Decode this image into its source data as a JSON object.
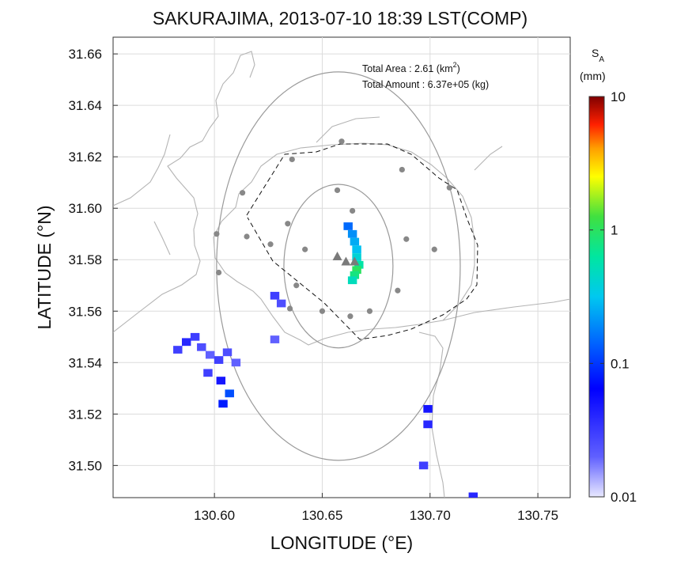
{
  "chart_data": {
    "type": "heatmap",
    "title": "SAKURAJIMA, 2013-07-10 18:39 LST(COMP)",
    "xlabel": "LONGITUDE (°E)",
    "ylabel": "LATITUDE (°N)",
    "xlim": [
      130.553,
      130.765
    ],
    "ylim": [
      31.4875,
      31.6665
    ],
    "xticks": [
      130.6,
      130.65,
      130.7,
      130.75
    ],
    "xtick_labels": [
      "130.60",
      "130.65",
      "130.70",
      "130.75"
    ],
    "yticks": [
      31.5,
      31.52,
      31.54,
      31.56,
      31.58,
      31.6,
      31.62,
      31.64,
      31.66
    ],
    "ytick_labels": [
      "31.50",
      "31.52",
      "31.54",
      "31.56",
      "31.58",
      "31.60",
      "31.62",
      "31.64",
      "31.66"
    ],
    "grid": true,
    "annotations": {
      "area_label": "Total Area   : 2.61 (km",
      "area_sup": "2",
      "area_close": ")",
      "amount_label": "Total Amount : 6.37e+05 (kg)"
    },
    "colorbar": {
      "label_main": "S",
      "label_sub": "A",
      "unit": "(mm)",
      "scale": "log",
      "range": [
        0.01,
        10
      ],
      "ticks": [
        10,
        1,
        0.1,
        0.01
      ],
      "tick_labels": [
        "10",
        "1",
        "0.1",
        "0.01"
      ]
    },
    "vents": [
      {
        "lon": 130.657,
        "lat": 31.581
      },
      {
        "lon": 130.661,
        "lat": 31.579
      },
      {
        "lon": 130.665,
        "lat": 31.579
      }
    ],
    "stations": [
      {
        "lon": 130.659,
        "lat": 31.626
      },
      {
        "lon": 130.636,
        "lat": 31.619
      },
      {
        "lon": 130.687,
        "lat": 31.615
      },
      {
        "lon": 130.709,
        "lat": 31.608
      },
      {
        "lon": 130.613,
        "lat": 31.606
      },
      {
        "lon": 130.657,
        "lat": 31.607
      },
      {
        "lon": 130.664,
        "lat": 31.599
      },
      {
        "lon": 130.634,
        "lat": 31.594
      },
      {
        "lon": 130.601,
        "lat": 31.59
      },
      {
        "lon": 130.615,
        "lat": 31.589
      },
      {
        "lon": 130.689,
        "lat": 31.588
      },
      {
        "lon": 130.626,
        "lat": 31.586
      },
      {
        "lon": 130.642,
        "lat": 31.584
      },
      {
        "lon": 130.702,
        "lat": 31.584
      },
      {
        "lon": 130.602,
        "lat": 31.575
      },
      {
        "lon": 130.638,
        "lat": 31.57
      },
      {
        "lon": 130.685,
        "lat": 31.568
      },
      {
        "lon": 130.635,
        "lat": 31.561
      },
      {
        "lon": 130.65,
        "lat": 31.56
      },
      {
        "lon": 130.672,
        "lat": 31.56
      },
      {
        "lon": 130.663,
        "lat": 31.558
      }
    ],
    "center": {
      "lon": 130.6575,
      "lat": 31.5775
    },
    "cells": [
      {
        "lon": 130.662,
        "lat": 31.593,
        "v": 0.15
      },
      {
        "lon": 130.664,
        "lat": 31.59,
        "v": 0.2
      },
      {
        "lon": 130.665,
        "lat": 31.587,
        "v": 0.25
      },
      {
        "lon": 130.666,
        "lat": 31.584,
        "v": 0.3
      },
      {
        "lon": 130.666,
        "lat": 31.581,
        "v": 0.4
      },
      {
        "lon": 130.667,
        "lat": 31.578,
        "v": 0.6
      },
      {
        "lon": 130.666,
        "lat": 31.576,
        "v": 1.0
      },
      {
        "lon": 130.665,
        "lat": 31.574,
        "v": 0.8
      },
      {
        "lon": 130.664,
        "lat": 31.572,
        "v": 0.5
      },
      {
        "lon": 130.583,
        "lat": 31.545,
        "v": 0.03
      },
      {
        "lon": 130.587,
        "lat": 31.548,
        "v": 0.04
      },
      {
        "lon": 130.591,
        "lat": 31.55,
        "v": 0.03
      },
      {
        "lon": 130.594,
        "lat": 31.546,
        "v": 0.025
      },
      {
        "lon": 130.598,
        "lat": 31.543,
        "v": 0.02
      },
      {
        "lon": 130.602,
        "lat": 31.541,
        "v": 0.03
      },
      {
        "lon": 130.606,
        "lat": 31.544,
        "v": 0.025
      },
      {
        "lon": 130.61,
        "lat": 31.54,
        "v": 0.02
      },
      {
        "lon": 130.597,
        "lat": 31.536,
        "v": 0.03
      },
      {
        "lon": 130.603,
        "lat": 31.533,
        "v": 0.05
      },
      {
        "lon": 130.607,
        "lat": 31.528,
        "v": 0.12
      },
      {
        "lon": 130.604,
        "lat": 31.524,
        "v": 0.08
      },
      {
        "lon": 130.628,
        "lat": 31.566,
        "v": 0.03
      },
      {
        "lon": 130.631,
        "lat": 31.563,
        "v": 0.025
      },
      {
        "lon": 130.628,
        "lat": 31.549,
        "v": 0.02
      },
      {
        "lon": 130.699,
        "lat": 31.522,
        "v": 0.05
      },
      {
        "lon": 130.699,
        "lat": 31.516,
        "v": 0.04
      },
      {
        "lon": 130.697,
        "lat": 31.5,
        "v": 0.03
      },
      {
        "lon": 130.72,
        "lat": 31.488,
        "v": 0.04
      }
    ]
  }
}
